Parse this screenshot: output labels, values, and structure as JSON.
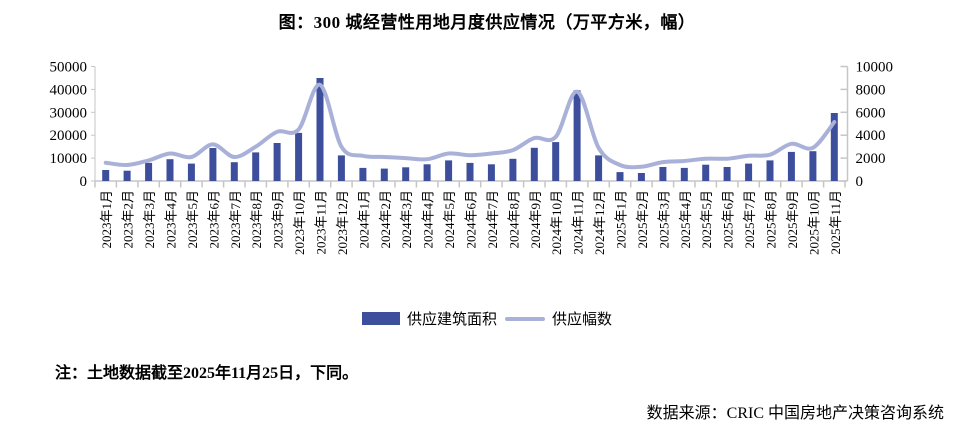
{
  "title": "图：300 城经营性用地月度供应情况（万平方米，幅）",
  "note": "注：土地数据截至2025年11月25日，下同。",
  "source": "数据来源：CRIC 中国房地产决策咨询系统",
  "legend": {
    "bar_label": "供应建筑面积",
    "line_label": "供应幅数"
  },
  "colors": {
    "bar": "#3C4E9C",
    "line": "#A9B1D9",
    "axis": "#C6C6C6",
    "text": "#000000"
  },
  "chart_data": {
    "type": "bar",
    "title": "图：300 城经营性用地月度供应情况（万平方米，幅）",
    "xlabel": "",
    "ylabel_left": "万平方米",
    "ylabel_right": "幅",
    "left_axis": {
      "min": 0,
      "max": 50000,
      "step": 10000,
      "ticks": [
        0,
        10000,
        20000,
        30000,
        40000,
        50000
      ]
    },
    "right_axis": {
      "min": 0,
      "max": 10000,
      "step": 2000,
      "ticks": [
        0,
        2000,
        4000,
        6000,
        8000,
        10000
      ]
    },
    "grid": false,
    "legend_position": "bottom",
    "categories": [
      "2023年1月",
      "2023年2月",
      "2023年3月",
      "2023年4月",
      "2023年5月",
      "2023年6月",
      "2023年7月",
      "2023年8月",
      "2023年9月",
      "2023年10月",
      "2023年11月",
      "2023年12月",
      "2024年1月",
      "2024年2月",
      "2024年3月",
      "2024年4月",
      "2024年5月",
      "2024年6月",
      "2024年7月",
      "2024年8月",
      "2024年9月",
      "2024年10月",
      "2024年11月",
      "2024年12月",
      "2025年1月",
      "2025年2月",
      "2025年3月",
      "2025年4月",
      "2025年5月",
      "2025年6月",
      "2025年7月",
      "2025年8月",
      "2025年9月",
      "2025年10月",
      "2025年11月"
    ],
    "series": [
      {
        "name": "供应建筑面积",
        "type": "bar",
        "axis": "left",
        "values": [
          4800,
          4500,
          7900,
          9500,
          7600,
          14400,
          8200,
          12500,
          16600,
          21000,
          45000,
          11200,
          5700,
          5400,
          6000,
          7300,
          9000,
          7900,
          7300,
          9700,
          14500,
          17000,
          39600,
          11200,
          3900,
          3500,
          6100,
          5700,
          7100,
          6100,
          7600,
          9000,
          12700,
          13000,
          29700
        ]
      },
      {
        "name": "供应幅数",
        "type": "line",
        "axis": "right",
        "values": [
          1600,
          1400,
          1800,
          2400,
          2100,
          3200,
          2100,
          3000,
          4300,
          4500,
          8400,
          3000,
          2200,
          2100,
          2000,
          1900,
          2400,
          2250,
          2400,
          2700,
          3750,
          3850,
          7800,
          2900,
          1400,
          1250,
          1650,
          1750,
          1950,
          1950,
          2200,
          2300,
          3250,
          2900,
          5150
        ]
      }
    ]
  }
}
